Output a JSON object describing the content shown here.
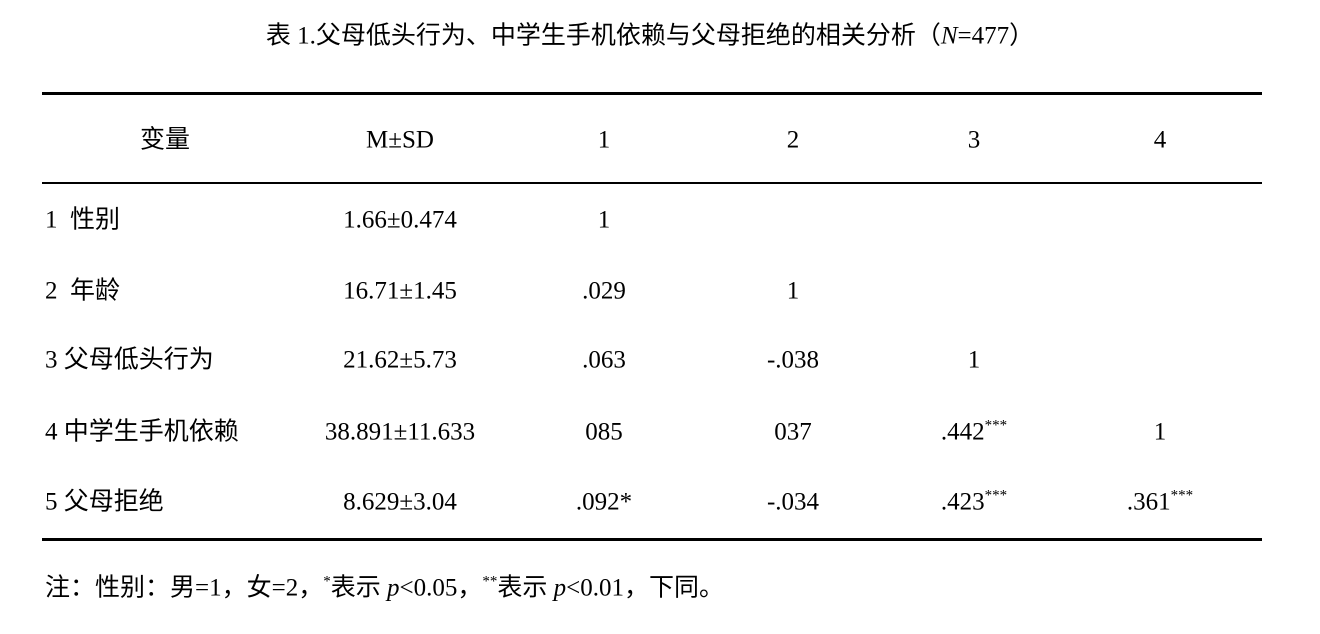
{
  "title": {
    "prefix": "表 1.父母低头行为、中学生手机依赖与父母拒绝的相关分析（",
    "n": "N",
    "suffix": "=477）"
  },
  "table": {
    "header": [
      "变量",
      "M±SD",
      "1",
      "2",
      "3",
      "4"
    ],
    "rows": [
      [
        "1  性别",
        "1.66±0.474",
        "1"
      ],
      [
        "2  年龄",
        "16.71±1.45",
        ".029",
        "1"
      ],
      [
        "3 父母低头行为",
        "21.62±5.73",
        ".063",
        "-.038",
        "1"
      ],
      [
        "4 中学生手机依赖",
        "38.891±11.633",
        "085",
        "037",
        {
          "text": ".442",
          "sup": "***"
        },
        "1"
      ],
      [
        "5 父母拒绝",
        "8.629±3.04",
        ".092*",
        "-.034",
        {
          "text": ".423",
          "sup": "***"
        },
        {
          "text": ".361",
          "sup": "***"
        }
      ]
    ]
  },
  "note": [
    {
      "text": "注：性别：男=1，女=2，"
    },
    {
      "text": "*",
      "style": "sup"
    },
    {
      "text": "表示 "
    },
    {
      "text": "p",
      "style": "italic"
    },
    {
      "text": "<0.05，"
    },
    {
      "text": "**",
      "style": "sup"
    },
    {
      "text": "表示 "
    },
    {
      "text": "p",
      "style": "italic"
    },
    {
      "text": "<0.01，下同。"
    }
  ]
}
